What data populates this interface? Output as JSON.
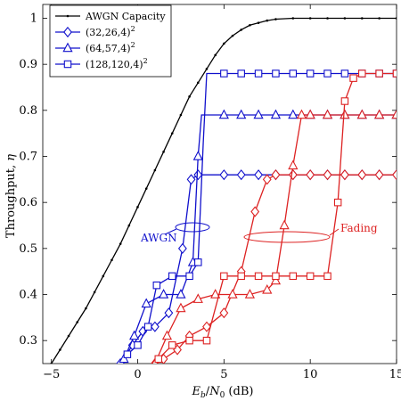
{
  "chart_data": {
    "type": "line",
    "xlabel": "E_b/N_0 (dB)",
    "ylabel": "Throughput, η",
    "xlim": [
      -5.5,
      15
    ],
    "ylim": [
      0.25,
      1.03
    ],
    "x_ticks": [
      -5,
      0,
      5,
      10,
      15
    ],
    "y_ticks": [
      0.3,
      0.4,
      0.5,
      0.6,
      0.7,
      0.8,
      0.9,
      1.0
    ],
    "legend": {
      "position": "top-left",
      "entries": [
        {
          "label": "AWGN Capacity",
          "marker": "dot",
          "color": "#000000"
        },
        {
          "label": "(32,26,4)",
          "sup": "2",
          "marker": "diamond",
          "color": "#1010cc"
        },
        {
          "label": "(64,57,4)",
          "sup": "2",
          "marker": "triangle",
          "color": "#1010cc"
        },
        {
          "label": "(128,120,4)",
          "sup": "2",
          "marker": "square",
          "color": "#1010cc"
        }
      ]
    },
    "series": [
      {
        "name": "AWGN Capacity",
        "color": "#000000",
        "marker": "dot",
        "x": [
          -5.5,
          -5,
          -4.5,
          -4,
          -3.5,
          -3,
          -2.5,
          -2,
          -1.5,
          -1,
          -0.5,
          0,
          0.5,
          1,
          1.5,
          2,
          2.5,
          3,
          3.5,
          4,
          4.5,
          5,
          5.5,
          6,
          6.5,
          7,
          7.5,
          8,
          9,
          10,
          11,
          12,
          13,
          14,
          15
        ],
        "y": [
          0.23,
          0.25,
          0.28,
          0.31,
          0.34,
          0.37,
          0.405,
          0.44,
          0.475,
          0.51,
          0.55,
          0.59,
          0.63,
          0.67,
          0.71,
          0.75,
          0.79,
          0.83,
          0.86,
          0.89,
          0.92,
          0.945,
          0.962,
          0.975,
          0.985,
          0.99,
          0.995,
          0.998,
          1.0,
          1.0,
          1.0,
          1.0,
          1.0,
          1.0,
          1.0
        ]
      },
      {
        "name": "(32,26,4)^2 AWGN",
        "color": "#1010cc",
        "marker": "diamond",
        "x": [
          -1,
          -0.3,
          0.3,
          1,
          1.8,
          2.6,
          3.1,
          3.5,
          4,
          5,
          6,
          7,
          8,
          9,
          10,
          11,
          12,
          13,
          14,
          15
        ],
        "y": [
          0.25,
          0.29,
          0.32,
          0.33,
          0.36,
          0.5,
          0.65,
          0.66,
          0.66,
          0.66,
          0.66,
          0.66,
          0.66,
          0.66,
          0.66,
          0.66,
          0.66,
          0.66,
          0.66,
          0.66
        ]
      },
      {
        "name": "(64,57,4)^2 AWGN",
        "color": "#1010cc",
        "marker": "triangle",
        "x": [
          -0.8,
          -0.2,
          0.5,
          1.5,
          2.5,
          3.2,
          3.5,
          3.7,
          4,
          5,
          6,
          7,
          8,
          9,
          10,
          11,
          12,
          13,
          14,
          15
        ],
        "y": [
          0.26,
          0.31,
          0.38,
          0.4,
          0.4,
          0.47,
          0.7,
          0.79,
          0.79,
          0.79,
          0.79,
          0.79,
          0.79,
          0.79,
          0.79,
          0.79,
          0.79,
          0.79,
          0.79,
          0.79
        ]
      },
      {
        "name": "(128,120,4)^2 AWGN",
        "color": "#1010cc",
        "marker": "square",
        "x": [
          -0.6,
          0,
          0.6,
          1.1,
          2,
          3,
          3.5,
          3.8,
          4,
          5,
          6,
          7,
          8,
          9,
          10,
          11,
          12,
          13,
          14,
          15
        ],
        "y": [
          0.27,
          0.29,
          0.33,
          0.42,
          0.44,
          0.44,
          0.47,
          0.73,
          0.88,
          0.88,
          0.88,
          0.88,
          0.88,
          0.88,
          0.88,
          0.88,
          0.88,
          0.88,
          0.88,
          0.88
        ]
      },
      {
        "name": "(32,26,4)^2 Fading",
        "color": "#dd2222",
        "marker": "diamond",
        "x": [
          1,
          1.5,
          2.3,
          3,
          4,
          5,
          6,
          6.8,
          7.5,
          8,
          9,
          10,
          11,
          12,
          13,
          14,
          15
        ],
        "y": [
          0.25,
          0.26,
          0.28,
          0.31,
          0.33,
          0.36,
          0.45,
          0.58,
          0.65,
          0.66,
          0.66,
          0.66,
          0.66,
          0.66,
          0.66,
          0.66,
          0.66
        ]
      },
      {
        "name": "(64,57,4)^2 Fading",
        "color": "#dd2222",
        "marker": "triangle",
        "x": [
          1,
          1.7,
          2.5,
          3.5,
          4.5,
          5.5,
          6.5,
          7.5,
          8,
          8.5,
          9,
          9.5,
          10,
          11,
          12,
          13,
          14,
          15
        ],
        "y": [
          0.25,
          0.31,
          0.37,
          0.39,
          0.4,
          0.4,
          0.4,
          0.41,
          0.43,
          0.55,
          0.68,
          0.79,
          0.79,
          0.79,
          0.79,
          0.79,
          0.79,
          0.79
        ]
      },
      {
        "name": "(128,120,4)^2 Fading",
        "color": "#dd2222",
        "marker": "square",
        "x": [
          1.2,
          2,
          3,
          4,
          5,
          6,
          7,
          8,
          9,
          10,
          11,
          11.6,
          12,
          12.5,
          13,
          14,
          15
        ],
        "y": [
          0.26,
          0.29,
          0.3,
          0.3,
          0.44,
          0.44,
          0.44,
          0.44,
          0.44,
          0.44,
          0.44,
          0.6,
          0.82,
          0.87,
          0.88,
          0.88,
          0.88
        ]
      }
    ],
    "annotations": [
      {
        "text": "AWGN",
        "color": "#1010cc"
      },
      {
        "text": "Fading",
        "color": "#dd2222"
      }
    ]
  }
}
